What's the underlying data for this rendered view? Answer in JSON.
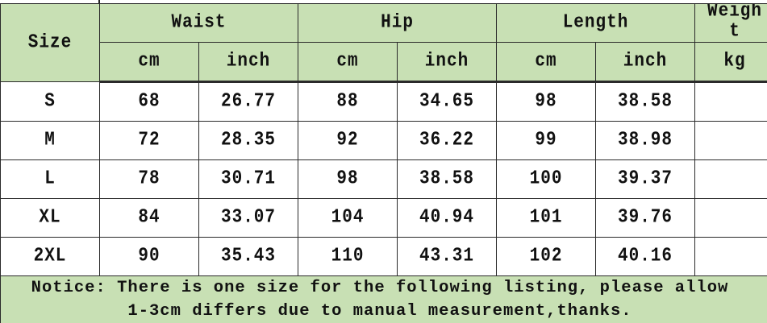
{
  "table": {
    "header": {
      "size": "Size",
      "groups": [
        "Waist",
        "Hip",
        "Length",
        "Weight"
      ],
      "units": [
        "cm",
        "inch",
        "cm",
        "inch",
        "cm",
        "inch",
        "kg"
      ]
    },
    "rows": [
      {
        "size": "S",
        "waist_cm": "68",
        "waist_inch": "26.77",
        "hip_cm": "88",
        "hip_inch": "34.65",
        "length_cm": "98",
        "length_inch": "38.58",
        "weight": ""
      },
      {
        "size": "M",
        "waist_cm": "72",
        "waist_inch": "28.35",
        "hip_cm": "92",
        "hip_inch": "36.22",
        "length_cm": "99",
        "length_inch": "38.98",
        "weight": ""
      },
      {
        "size": "L",
        "waist_cm": "78",
        "waist_inch": "30.71",
        "hip_cm": "98",
        "hip_inch": "38.58",
        "length_cm": "100",
        "length_inch": "39.37",
        "weight": ""
      },
      {
        "size": "XL",
        "waist_cm": "84",
        "waist_inch": "33.07",
        "hip_cm": "104",
        "hip_inch": "40.94",
        "length_cm": "101",
        "length_inch": "39.76",
        "weight": ""
      },
      {
        "size": "2XL",
        "waist_cm": "90",
        "waist_inch": "35.43",
        "hip_cm": "110",
        "hip_inch": "43.31",
        "length_cm": "102",
        "length_inch": "40.16",
        "weight": ""
      }
    ],
    "notice": "Notice: There is one size for the following listing, please allow 1-3cm differs due to manual measurement,thanks."
  },
  "colors": {
    "header_bg": "#c8e0b4",
    "border": "#2a2a2a"
  }
}
